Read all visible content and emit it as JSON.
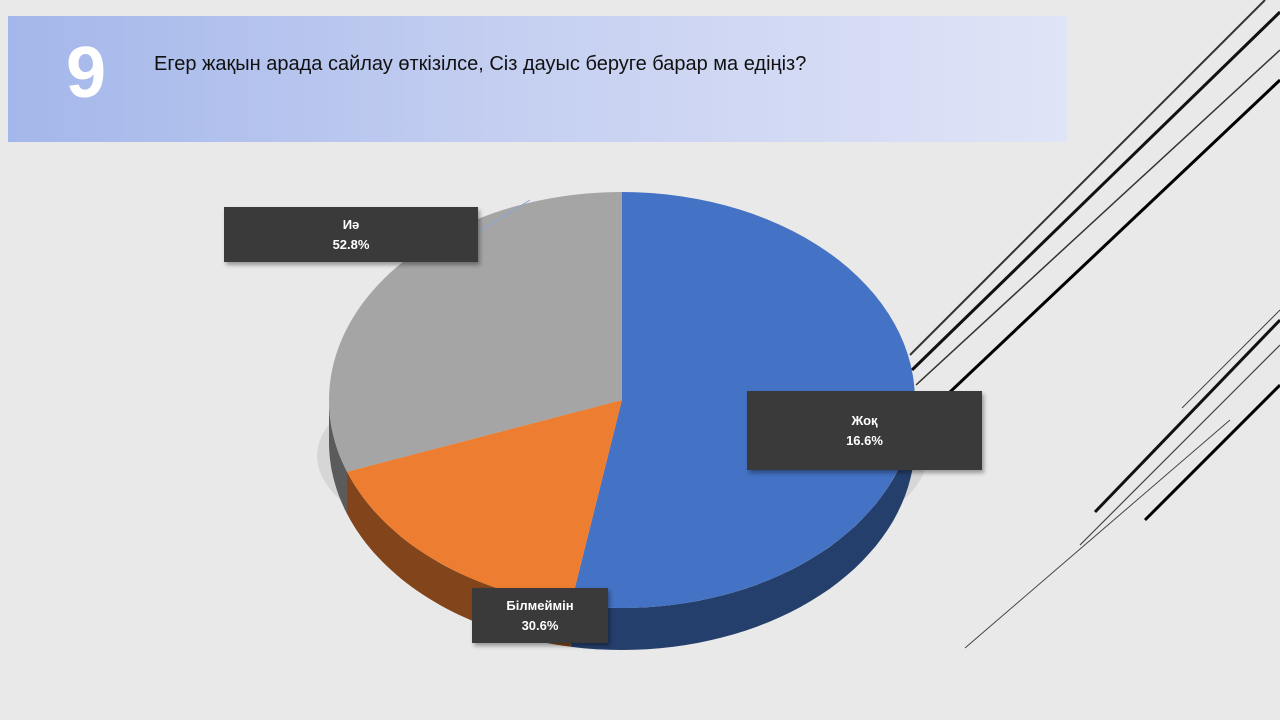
{
  "header": {
    "slide_number": "9",
    "question": "Егер жақын арада сайлау өткізілсе, Сіз дауыс беруге барар ма едіңіз?"
  },
  "chart_data": {
    "type": "pie",
    "title": "",
    "categories": [
      "Иә",
      "Жоқ",
      "Білмеймін"
    ],
    "values": [
      52.8,
      16.6,
      30.6
    ],
    "value_labels": [
      "52.8%",
      "16.6%",
      "30.6%"
    ],
    "colors": [
      "#4472c4",
      "#ed7d31",
      "#a5a5a5"
    ],
    "three_d": true,
    "legend": "none",
    "data_labels": "callout boxes"
  }
}
